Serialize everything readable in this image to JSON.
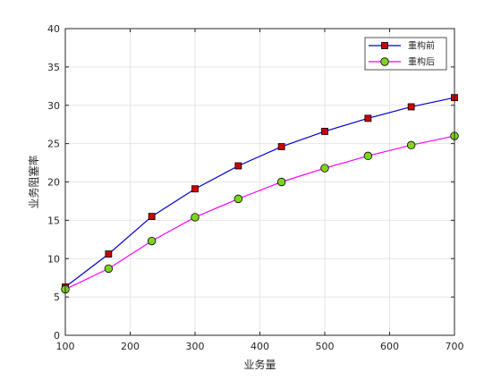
{
  "chart_data": {
    "type": "line",
    "title": "",
    "xlabel": "业务量",
    "ylabel": "业务阻塞率",
    "xlim": [
      100,
      700
    ],
    "ylim": [
      0,
      40
    ],
    "xticks": [
      100,
      200,
      300,
      400,
      500,
      600,
      700
    ],
    "yticks": [
      0,
      5,
      10,
      15,
      20,
      25,
      30,
      35,
      40
    ],
    "grid": true,
    "legend_position": "top-right",
    "x": [
      100,
      166.7,
      233.3,
      300,
      366.7,
      433.3,
      500,
      566.7,
      633.3,
      700
    ],
    "series": [
      {
        "name": "重构前",
        "values": [
          6.3,
          10.6,
          15.5,
          19.1,
          22.1,
          24.6,
          26.6,
          28.3,
          29.8,
          31.0
        ],
        "line_color": "#0000cc",
        "marker": "square",
        "marker_fill": "#cc0000"
      },
      {
        "name": "重构后",
        "values": [
          6.0,
          8.7,
          12.3,
          15.4,
          17.8,
          20.0,
          21.8,
          23.4,
          24.8,
          26.0
        ],
        "line_color": "#ff00ff",
        "marker": "circle",
        "marker_fill": "#7fd41f"
      }
    ]
  }
}
